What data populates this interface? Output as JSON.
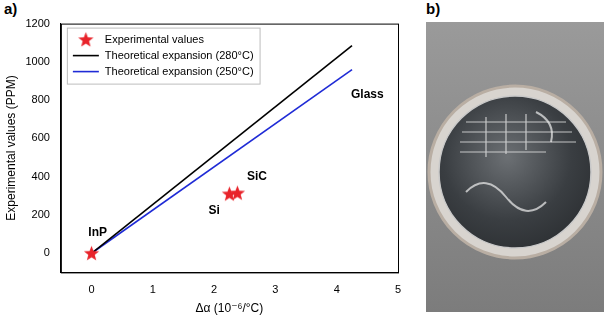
{
  "chart_data": {
    "type": "scatter",
    "panel_label": "a)",
    "x_label": "Δα (10⁻⁶/°C)",
    "y_label": "Experimental values (PPM)",
    "xlim": [
      -0.5,
      5
    ],
    "xticks": [
      0,
      1,
      2,
      3,
      4,
      5
    ],
    "ylim": [
      -100,
      1200
    ],
    "yticks": [
      0,
      200,
      400,
      600,
      800,
      1000,
      1200
    ],
    "grid": false,
    "legend": "upper left",
    "series": [
      {
        "name": "Experimental values",
        "type": "scatter",
        "color": "#e8232a",
        "marker": "star",
        "x": [
          0,
          2.25,
          2.38
        ],
        "values": [
          0,
          310,
          315
        ]
      },
      {
        "name": "Theoretical expansion (280°C)",
        "type": "line",
        "color": "#000000",
        "marker": "none",
        "line_style": "solid",
        "x": [
          0,
          4.25
        ],
        "values": [
          0,
          1085
        ]
      },
      {
        "name": "Theoretical expansion (250°C)",
        "type": "line",
        "color": "#1f2bd6",
        "marker": "none",
        "line_style": "solid",
        "x": [
          0,
          4.25
        ],
        "values": [
          0,
          960
        ]
      }
    ],
    "annotations": [
      {
        "text": "InP",
        "x": 0.1,
        "y": 110
      },
      {
        "text": "Si",
        "x": 2.0,
        "y": 220
      },
      {
        "text": "SiC",
        "x": 2.7,
        "y": 400
      },
      {
        "text": "Glass",
        "x": 4.5,
        "y": 830
      }
    ]
  },
  "photo": {
    "panel_label": "b)"
  }
}
